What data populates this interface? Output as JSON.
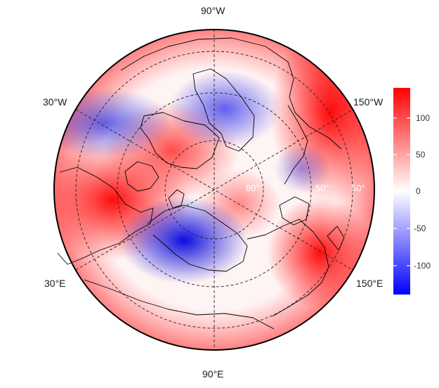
{
  "projection": "polar-stereographic-north",
  "longitude_labels": {
    "top": "90°W",
    "upper_left": "30°W",
    "upper_right": "150°W",
    "lower_left": "30°E",
    "lower_right": "150°E",
    "bottom": "90°E"
  },
  "latitude_labels": [
    "80°",
    "50°",
    "50°"
  ],
  "colorbar": {
    "ticks": [
      "100",
      "50",
      "0",
      "-50",
      "-100"
    ],
    "range": [
      -135,
      135
    ],
    "colors": {
      "max": "#ff0000",
      "mid": "#ffffff",
      "min": "#0000ff"
    }
  },
  "anomaly_pattern": [
    {
      "region": "western europe",
      "sign": "positive",
      "strength": "strong"
    },
    {
      "region": "greenland sector",
      "sign": "positive",
      "strength": "moderate"
    },
    {
      "region": "north pacific / alaska",
      "sign": "positive",
      "strength": "strong"
    },
    {
      "region": "east asia",
      "sign": "positive",
      "strength": "strong"
    },
    {
      "region": "central siberia",
      "sign": "negative",
      "strength": "strong"
    },
    {
      "region": "canadian arctic",
      "sign": "negative",
      "strength": "moderate"
    },
    {
      "region": "north atlantic",
      "sign": "negative",
      "strength": "moderate"
    }
  ]
}
